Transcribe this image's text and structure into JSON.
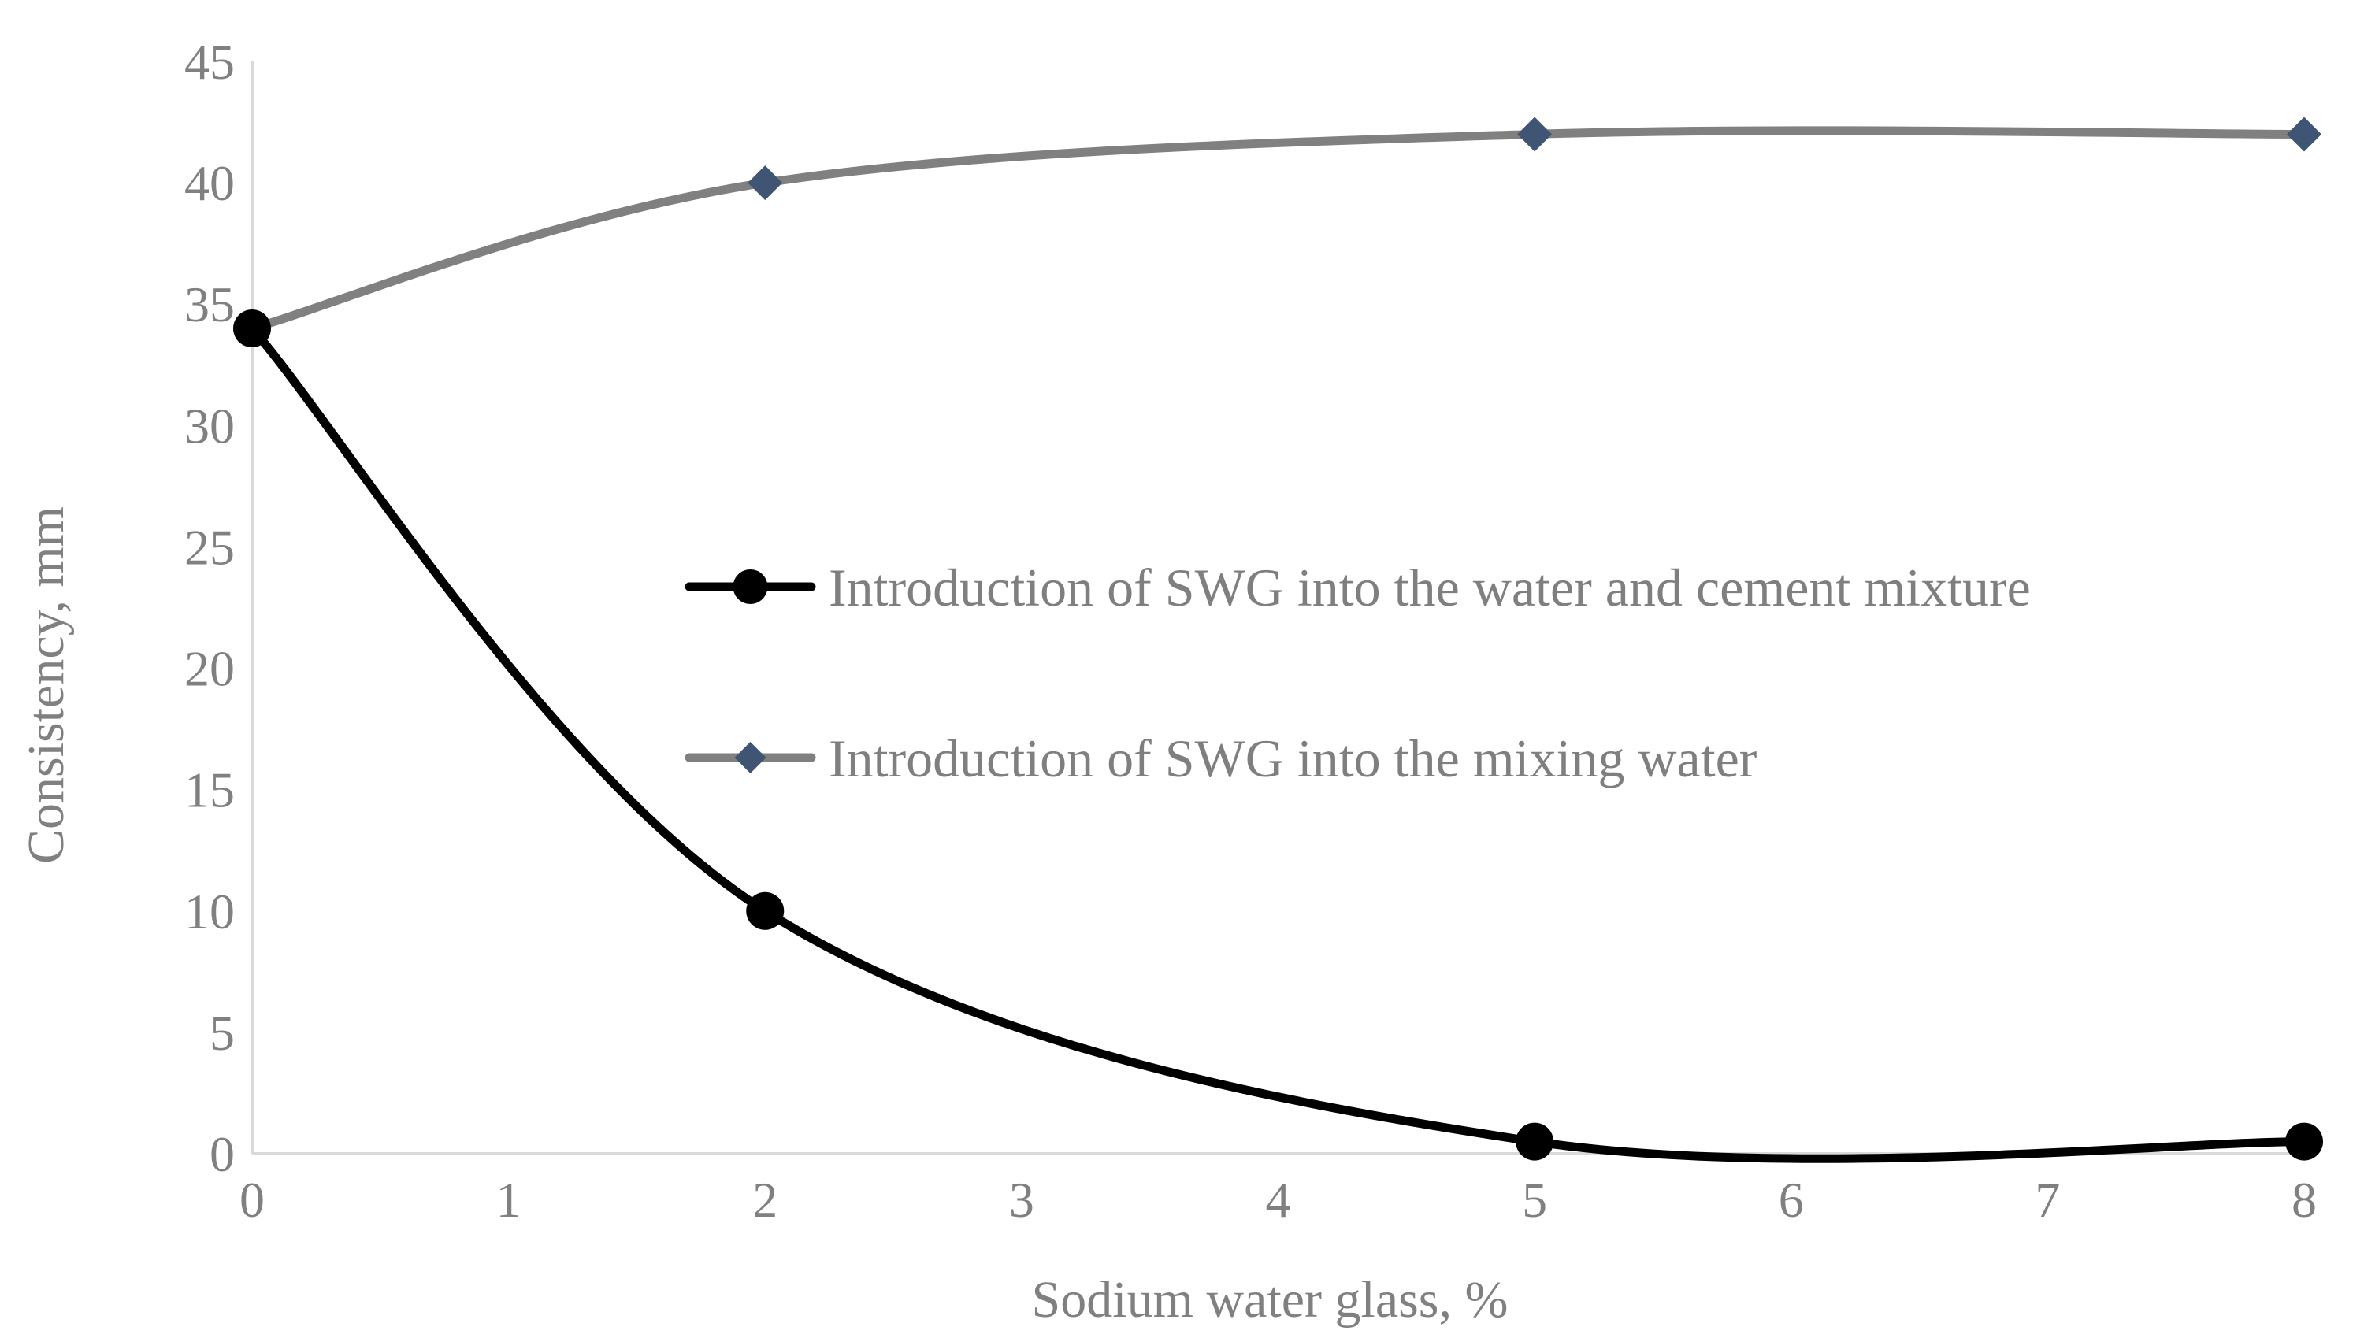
{
  "chart_data": {
    "type": "line",
    "title": "",
    "xlabel": "Sodium water glass, %",
    "ylabel": "Consistency, mm",
    "xlim": [
      0,
      8
    ],
    "ylim": [
      0,
      45
    ],
    "x_ticks": [
      "0",
      "1",
      "2",
      "3",
      "4",
      "5",
      "6",
      "7",
      "8"
    ],
    "y_ticks": [
      "0",
      "5",
      "10",
      "15",
      "20",
      "25",
      "30",
      "35",
      "40",
      "45"
    ],
    "grid": false,
    "smooth": true,
    "legend_position": "center-right",
    "series": [
      {
        "name": "Introduction of SWG into the water and cement mixture",
        "marker": "circle",
        "color": "#000000",
        "x": [
          0,
          2,
          5,
          8
        ],
        "y": [
          34,
          10,
          0.5,
          0.5
        ]
      },
      {
        "name": "Introduction of SWG into the mixing water",
        "marker": "diamond",
        "color": "#808080",
        "marker_color": "#3f5573",
        "x": [
          0,
          2,
          5,
          8
        ],
        "y": [
          34,
          40,
          42,
          42
        ]
      }
    ]
  }
}
